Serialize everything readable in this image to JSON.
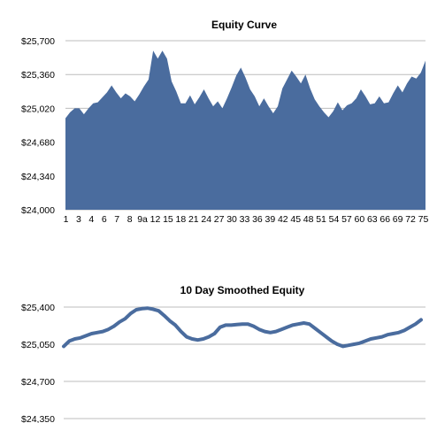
{
  "chart_data": [
    {
      "type": "area",
      "title": "Equity Curve",
      "xlabel": "",
      "ylabel": "",
      "ylim": [
        24000,
        25700
      ],
      "yticks": [
        24000,
        24340,
        24680,
        25020,
        25360,
        25700
      ],
      "ytick_labels": [
        "$24,000",
        "$24,340",
        "$24,680",
        "$25,020",
        "$25,360",
        "$25,700"
      ],
      "xtick_labels": [
        "1",
        "3",
        "4",
        "6",
        "7",
        "8",
        "9a",
        "12",
        "15",
        "18",
        "21",
        "24",
        "27",
        "30",
        "33",
        "36",
        "39",
        "42",
        "45",
        "48",
        "51",
        "54",
        "57",
        "60",
        "63",
        "66",
        "69",
        "72",
        "75"
      ],
      "grid": true,
      "color": "#4a6c9e",
      "values": [
        24920,
        24980,
        25020,
        25020,
        24960,
        25020,
        25070,
        25080,
        25130,
        25180,
        25250,
        25180,
        25120,
        25170,
        25140,
        25090,
        25160,
        25240,
        25310,
        25600,
        25520,
        25600,
        25520,
        25290,
        25190,
        25070,
        25070,
        25150,
        25060,
        25130,
        25210,
        25120,
        25040,
        25090,
        25020,
        25120,
        25230,
        25350,
        25430,
        25330,
        25210,
        25140,
        25040,
        25120,
        25040,
        24970,
        25040,
        25220,
        25310,
        25400,
        25340,
        25270,
        25360,
        25220,
        25110,
        25040,
        24980,
        24930,
        24990,
        25080,
        25000,
        25050,
        25070,
        25120,
        25210,
        25140,
        25060,
        25070,
        25140,
        25070,
        25080,
        25170,
        25250,
        25180,
        25270,
        25340,
        25320,
        25380,
        25500
      ]
    },
    {
      "type": "line",
      "title": "10 Day Smoothed Equity",
      "xlabel": "",
      "ylabel": "",
      "ylim": [
        24350,
        25400
      ],
      "yticks": [
        24350,
        24700,
        25050,
        25400
      ],
      "ytick_labels": [
        "$24,350",
        "$24,700",
        "$25,050",
        "$25,400"
      ],
      "grid": true,
      "color": "#4a6c9e",
      "values": [
        25030,
        25080,
        25100,
        25110,
        25130,
        25150,
        25160,
        25170,
        25190,
        25220,
        25260,
        25290,
        25340,
        25375,
        25385,
        25390,
        25380,
        25365,
        25320,
        25270,
        25230,
        25170,
        25120,
        25100,
        25090,
        25100,
        25120,
        25150,
        25210,
        25230,
        25230,
        25235,
        25240,
        25240,
        25220,
        25190,
        25170,
        25160,
        25170,
        25190,
        25210,
        25230,
        25240,
        25250,
        25240,
        25200,
        25160,
        25120,
        25080,
        25050,
        25030,
        25040,
        25050,
        25060,
        25080,
        25100,
        25110,
        25120,
        25140,
        25150,
        25160,
        25180,
        25210,
        25240,
        25280
      ]
    }
  ]
}
